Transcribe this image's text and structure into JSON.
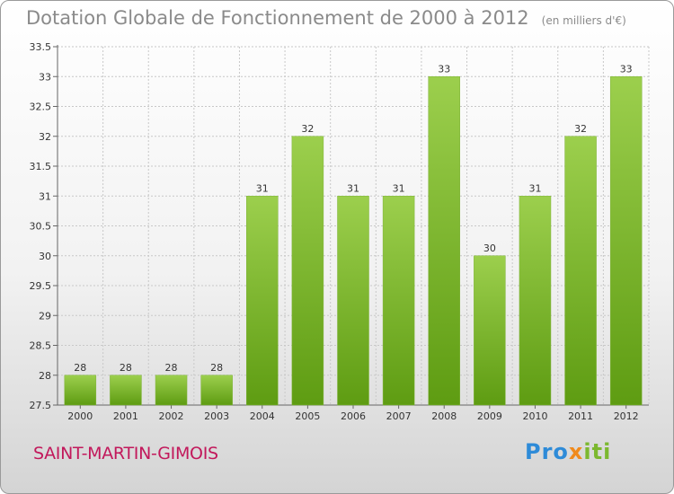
{
  "title": {
    "main": "Dotation Globale de Fonctionnement de 2000 à 2012",
    "unit": "(en milliers d'€)"
  },
  "commune": "SAINT-MARTIN-GIMOIS",
  "logo": {
    "part1": "Pro",
    "part2": "x",
    "part3": "iti"
  },
  "colors": {
    "bar_top": "#9ccf4d",
    "bar_bottom": "#5e9c12",
    "commune_text": "#c2185b",
    "title_text": "#8a8a8a"
  },
  "chart_data": {
    "type": "bar",
    "title": "Dotation Globale de Fonctionnement de 2000 à 2012",
    "subtitle": "(en milliers d'€)",
    "xlabel": "",
    "ylabel": "",
    "categories": [
      "2000",
      "2001",
      "2002",
      "2003",
      "2004",
      "2005",
      "2006",
      "2007",
      "2008",
      "2009",
      "2010",
      "2011",
      "2012"
    ],
    "values": [
      28,
      28,
      28,
      28,
      31,
      32,
      31,
      31,
      33,
      30,
      31,
      32,
      33
    ],
    "data_labels": [
      "28",
      "28",
      "28",
      "28",
      "31",
      "32",
      "31",
      "31",
      "33",
      "30",
      "31",
      "32",
      "33"
    ],
    "ylim": [
      27.5,
      33.5
    ],
    "yticks": [
      "27.5",
      "28",
      "28.5",
      "29",
      "29.5",
      "30",
      "30.5",
      "31",
      "31.5",
      "32",
      "32.5",
      "33",
      "33.5"
    ],
    "grid": true,
    "legend": "none"
  }
}
